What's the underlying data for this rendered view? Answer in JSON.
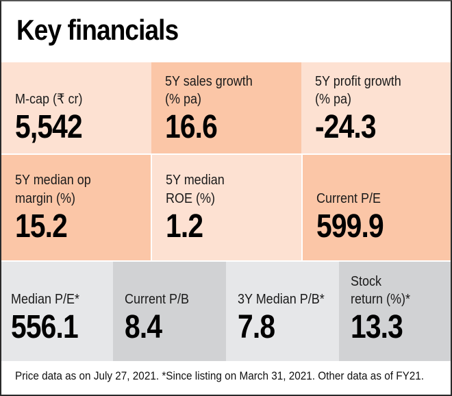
{
  "title": "Key financials",
  "colors": {
    "light_peach": "#fde1d2",
    "dark_peach": "#fbc6a7",
    "light_grey": "#e6e7e9",
    "dark_grey": "#d1d2d4"
  },
  "row1": [
    {
      "label_lines": [
        "M-cap (₹ cr)"
      ],
      "value": "5,542"
    },
    {
      "label_lines": [
        "5Y sales growth",
        "(% pa)"
      ],
      "value": "16.6"
    },
    {
      "label_lines": [
        "5Y profit growth",
        "(% pa)"
      ],
      "value": "-24.3"
    }
  ],
  "row2": [
    {
      "label_lines": [
        "5Y median op",
        "margin (%)"
      ],
      "value": "15.2"
    },
    {
      "label_lines": [
        "5Y median",
        "ROE (%)"
      ],
      "value": "1.2"
    },
    {
      "label_lines": [
        "Current P/E"
      ],
      "value": "599.9"
    }
  ],
  "row3": [
    {
      "label_lines": [
        "Median P/E*"
      ],
      "value": "556.1"
    },
    {
      "label_lines": [
        "Current P/B"
      ],
      "value": "8.4"
    },
    {
      "label_lines": [
        "3Y Median P/B*"
      ],
      "value": "7.8"
    },
    {
      "label_lines": [
        "Stock",
        "return (%)*"
      ],
      "value": "13.3"
    }
  ],
  "footer": "Price data as on July 27, 2021. *Since listing on March 31, 2021. Other data as of FY21."
}
